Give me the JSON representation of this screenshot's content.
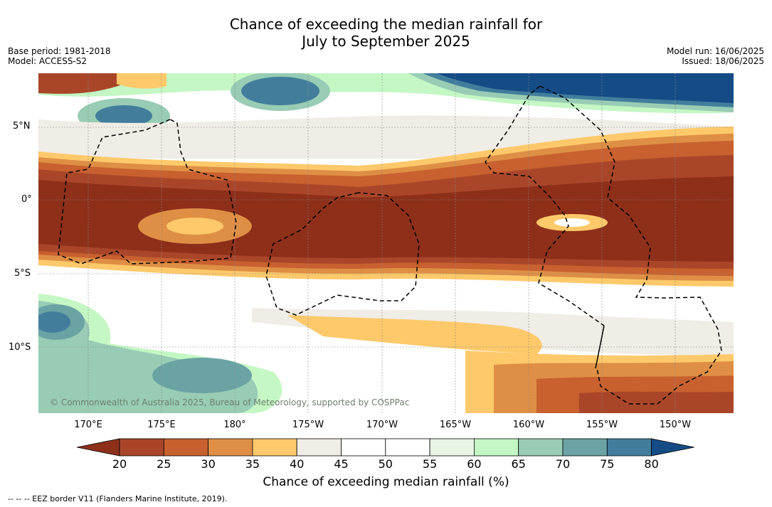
{
  "title_line1": "Chance of exceeding the median rainfall for",
  "title_line2": "July to September 2025",
  "meta_left": {
    "base_period": "Base period: 1981-2018",
    "model": "Model: ACCESS-S2"
  },
  "meta_right": {
    "model_run": "Model run: 16/06/2025",
    "issued": "Issued: 18/06/2025"
  },
  "y_labels": [
    "5°N",
    "0°",
    "5°S",
    "10°S"
  ],
  "x_labels": [
    "170°E",
    "175°E",
    "180°",
    "175°W",
    "170°W",
    "165°W",
    "160°W",
    "155°W",
    "150°W"
  ],
  "copyright": "© Commonwealth of Australia 2025, Bureau of Meteorology, supported by COSPPac",
  "colorbar": {
    "ticks": [
      "20",
      "25",
      "30",
      "35",
      "40",
      "45",
      "50",
      "55",
      "60",
      "65",
      "70",
      "75",
      "80"
    ],
    "colors": [
      "#8e2f1a",
      "#a9462a",
      "#c8602f",
      "#de8f45",
      "#fdc96a",
      "#f0ece6",
      "#ffffff",
      "#ffffff",
      "#e8f5e4",
      "#c4f7c4",
      "#98ccb4",
      "#6ba3a4",
      "#427e9c",
      "#154c86"
    ],
    "label": "Chance of exceeding median rainfall (%)"
  },
  "footer": "-- -- -- EEZ border V11 (Flanders Marine Institute, 2019)."
}
